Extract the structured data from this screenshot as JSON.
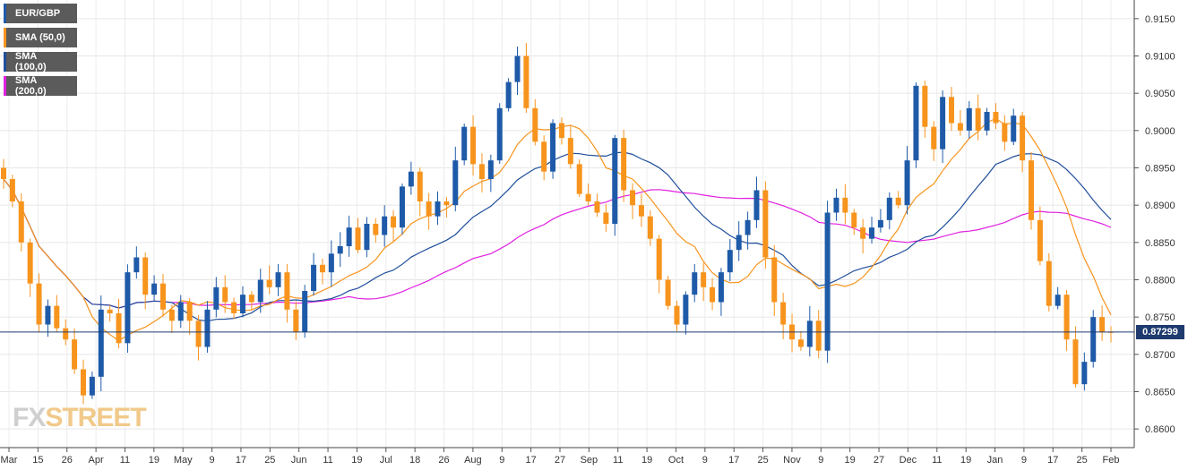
{
  "legend": [
    {
      "label": "EUR/GBP",
      "color": "#1e5aa8"
    },
    {
      "label": "SMA (50,0)",
      "color": "#f7941d"
    },
    {
      "label": "SMA (100,0)",
      "color": "#1f4e9c"
    },
    {
      "label": "SMA (200,0)",
      "color": "#e020e0"
    }
  ],
  "watermark": {
    "fx": "FX",
    "street": "STREET"
  },
  "last_price": "0.87299",
  "chart_data": {
    "type": "candlestick",
    "symbol": "EUR/GBP",
    "ylim": [
      0.8575,
      0.9175
    ],
    "y_ticks": [
      "0.8600",
      "0.8650",
      "0.8700",
      "0.8750",
      "0.8800",
      "0.8850",
      "0.8900",
      "0.8950",
      "0.9000",
      "0.9050",
      "0.9100",
      "0.9150"
    ],
    "x_tick_labels": [
      "Mar",
      "15",
      "26",
      "Apr",
      "11",
      "19",
      "May",
      "9",
      "17",
      "25",
      "Jun",
      "11",
      "19",
      "Jul",
      "18",
      "26",
      "Aug",
      "9",
      "17",
      "27",
      "Sep",
      "11",
      "19",
      "Oct",
      "9",
      "17",
      "25",
      "Nov",
      "9",
      "19",
      "27",
      "Dec",
      "11",
      "19",
      "Jan",
      "9",
      "17",
      "25",
      "Feb"
    ],
    "up_color": "#1e5aa8",
    "down_color": "#f7941d",
    "last_value": 0.87299,
    "close_path": [
      0.8935,
      0.8905,
      0.885,
      0.8795,
      0.874,
      0.8765,
      0.8735,
      0.872,
      0.868,
      0.8645,
      0.867,
      0.876,
      0.8755,
      0.8715,
      0.881,
      0.883,
      0.878,
      0.8795,
      0.876,
      0.8745,
      0.877,
      0.8745,
      0.871,
      0.876,
      0.879,
      0.877,
      0.8755,
      0.878,
      0.877,
      0.88,
      0.879,
      0.881,
      0.876,
      0.873,
      0.8785,
      0.882,
      0.881,
      0.8835,
      0.8845,
      0.887,
      0.884,
      0.8875,
      0.886,
      0.8885,
      0.887,
      0.8925,
      0.8945,
      0.8905,
      0.8885,
      0.8905,
      0.89,
      0.896,
      0.9005,
      0.8955,
      0.8935,
      0.896,
      0.903,
      0.9065,
      0.91,
      0.903,
      0.8985,
      0.8945,
      0.901,
      0.899,
      0.8955,
      0.8915,
      0.8905,
      0.889,
      0.8875,
      0.899,
      0.892,
      0.89,
      0.8885,
      0.8855,
      0.88,
      0.8765,
      0.874,
      0.878,
      0.881,
      0.879,
      0.877,
      0.881,
      0.884,
      0.886,
      0.888,
      0.892,
      0.883,
      0.877,
      0.874,
      0.872,
      0.871,
      0.8745,
      0.8705,
      0.889,
      0.891,
      0.889,
      0.887,
      0.8855,
      0.887,
      0.888,
      0.891,
      0.89,
      0.896,
      0.906,
      0.9005,
      0.8975,
      0.9045,
      0.901,
      0.9,
      0.903,
      0.9,
      0.9025,
      0.901,
      0.8985,
      0.902,
      0.896,
      0.888,
      0.8825,
      0.8765,
      0.878,
      0.872,
      0.866,
      0.869,
      0.875,
      0.873,
      0.87299
    ]
  }
}
